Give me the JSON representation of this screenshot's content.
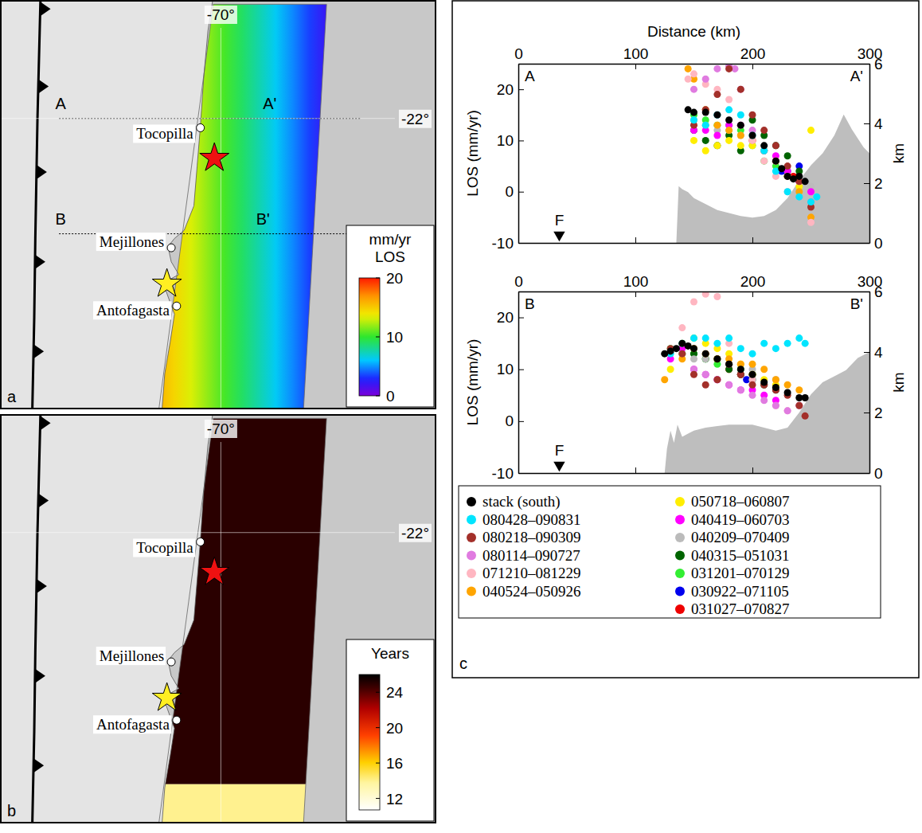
{
  "geography": {
    "lon_range": [
      -72.04,
      -68.01
    ],
    "lat_range": [
      -20.99,
      -24.49
    ],
    "lon_ticks": [
      {
        "value": -70,
        "label": "-70°"
      }
    ],
    "lat_ticks": [
      {
        "value": -22,
        "label": "-22°"
      }
    ],
    "coastline": [
      [
        -70.07,
        -20.95
      ],
      [
        -70.12,
        -21.25
      ],
      [
        -70.16,
        -21.66
      ],
      [
        -70.19,
        -22.07
      ],
      [
        -70.22,
        -22.41
      ],
      [
        -70.25,
        -22.75
      ],
      [
        -70.34,
        -22.96
      ],
      [
        -70.43,
        -23.03
      ],
      [
        -70.49,
        -23.1
      ],
      [
        -70.46,
        -23.23
      ],
      [
        -70.39,
        -23.34
      ],
      [
        -70.47,
        -23.38
      ],
      [
        -70.52,
        -23.45
      ],
      [
        -70.47,
        -23.58
      ],
      [
        -70.43,
        -23.68
      ],
      [
        -70.47,
        -23.92
      ],
      [
        -70.52,
        -24.19
      ],
      [
        -70.55,
        -24.55
      ]
    ],
    "trench": [
      [
        -71.67,
        -20.9
      ],
      [
        -71.7,
        -22.0
      ],
      [
        -71.72,
        -23.03
      ],
      [
        -71.73,
        -23.71
      ],
      [
        -71.75,
        -24.6
      ]
    ],
    "swath": [
      [
        -70.07,
        -21.02
      ],
      [
        -69.02,
        -21.02
      ],
      [
        -69.24,
        -24.6
      ],
      [
        -70.59,
        -24.6
      ]
    ],
    "cities": [
      {
        "name": "Tocopilla",
        "lon": -70.19,
        "lat": -22.08
      },
      {
        "name": "Mejillones",
        "lon": -70.46,
        "lat": -23.11
      },
      {
        "name": "Antofagasta",
        "lon": -70.41,
        "lat": -23.61
      }
    ],
    "stars": [
      {
        "lon": -70.06,
        "lat": -22.34,
        "color": "#ee1111"
      },
      {
        "lon": -70.5,
        "lat": -23.42,
        "color": "#ffee22"
      }
    ]
  },
  "map_a": {
    "label": "a",
    "field": [
      16,
      2
    ],
    "colorbar": {
      "title": [
        "mm/yr",
        "LOS"
      ],
      "range": [
        0,
        20
      ],
      "ticks": [
        0,
        10,
        20
      ]
    },
    "profiles": [
      {
        "start_label": "A",
        "end_label": "A'",
        "lat": -22.0,
        "lon": [
          -71.5,
          -68.71
        ]
      },
      {
        "start_label": "B",
        "end_label": "B'",
        "lat": -22.99,
        "lon": [
          -71.5,
          -68.8
        ]
      }
    ]
  },
  "map_b": {
    "label": "b",
    "field": [
      25,
      14
    ],
    "south_boundary_lat": -24.16,
    "colorbar": {
      "title": [
        "Years"
      ],
      "range": [
        10.7,
        26
      ],
      "ticks": [
        12,
        16,
        20,
        24
      ]
    }
  },
  "chart_data": [
    {
      "type": "scatter",
      "marker": "circle",
      "x_label": "Distance (km)",
      "y_label": "LOS (mm/yr)",
      "y2_label": "km",
      "xlim": [
        0,
        300
      ],
      "xticks": [
        0,
        100,
        200,
        300
      ],
      "ylim": [
        -10,
        25
      ],
      "yticks": [
        -10,
        0,
        10,
        20
      ],
      "y2lim": [
        0,
        6
      ],
      "y2ticks": [
        0,
        2,
        4,
        6
      ],
      "corner_labels": [
        "A",
        "A'"
      ],
      "markers": [
        {
          "text": "F",
          "x": 35
        }
      ],
      "topography": {
        "type": "area",
        "axis": "y2",
        "color": "#bebebe",
        "x": [
          0,
          135,
          137,
          140,
          145,
          150,
          160,
          170,
          180,
          190,
          200,
          210,
          220,
          230,
          240,
          250,
          260,
          270,
          278,
          285,
          295,
          300
        ],
        "values": [
          0,
          0,
          1.9,
          1.8,
          1.7,
          1.5,
          1.3,
          1.1,
          1.0,
          0.9,
          0.85,
          0.9,
          1.1,
          1.5,
          2.1,
          2.6,
          3.0,
          3.6,
          4.3,
          3.8,
          3.2,
          3.0
        ]
      },
      "series": [
        {
          "x": [
            145,
            150,
            160,
            170,
            180,
            190,
            200,
            210,
            220,
            225,
            230,
            235,
            240,
            245
          ],
          "values": [
            16,
            15.5,
            15.5,
            15,
            14,
            13,
            11,
            9,
            6,
            4.5,
            3,
            2.5,
            3,
            2
          ]
        },
        {
          "x": [
            150,
            160,
            170,
            180,
            190,
            200,
            210,
            220,
            230,
            240,
            250,
            255
          ],
          "values": [
            14,
            13,
            15,
            16,
            15,
            11,
            8,
            4,
            0,
            -1,
            -2,
            -1
          ]
        },
        {
          "x": [
            150,
            160,
            170,
            180,
            190,
            200,
            210,
            220,
            230,
            240,
            250
          ],
          "values": [
            13,
            16,
            19,
            24,
            20,
            15,
            12,
            9,
            5,
            2,
            -3
          ]
        },
        {
          "x": [
            150,
            160,
            170,
            180,
            185,
            190,
            200,
            210,
            220,
            230,
            240,
            250
          ],
          "values": [
            20,
            22,
            24,
            24.5,
            24,
            20,
            12,
            8,
            6,
            3,
            2,
            -2
          ]
        },
        {
          "x": [
            145,
            150,
            160,
            170,
            180,
            190,
            200,
            210,
            220,
            230,
            250
          ],
          "values": [
            22,
            23,
            21,
            20,
            18,
            13,
            10,
            6,
            3,
            0,
            -6
          ]
        },
        {
          "x": [
            145,
            150,
            160,
            170,
            180,
            190,
            200,
            210,
            220,
            230,
            240,
            250
          ],
          "values": [
            24,
            22,
            16,
            13,
            12,
            11,
            10,
            8,
            6,
            3,
            0,
            -5
          ]
        },
        {
          "x": [
            150,
            160,
            170,
            180,
            190,
            200,
            210,
            220,
            230,
            240,
            250
          ],
          "values": [
            10,
            8,
            9,
            10,
            9,
            9,
            8,
            6,
            3,
            1,
            12
          ]
        },
        {
          "x": [
            150,
            160,
            170,
            180,
            190,
            200,
            210,
            220,
            230,
            240,
            250
          ],
          "values": [
            12,
            12,
            11,
            13,
            13,
            10,
            8,
            7,
            4,
            2,
            0
          ]
        },
        {
          "x": [
            150,
            160,
            170,
            180,
            190,
            200,
            210,
            220,
            230,
            240,
            250
          ],
          "values": [
            14,
            13,
            12,
            12,
            11,
            10,
            8,
            6,
            4,
            2,
            1
          ]
        },
        {
          "x": [
            150,
            160,
            170,
            180,
            190,
            200,
            210,
            220,
            230,
            240
          ],
          "values": [
            12,
            10,
            9,
            11,
            8,
            14,
            11,
            9,
            7,
            4
          ]
        },
        {
          "x": [
            150,
            160,
            170,
            180,
            190,
            200,
            210,
            220,
            230
          ],
          "values": [
            15,
            14,
            13,
            13,
            12,
            9,
            6,
            5,
            3
          ]
        },
        {
          "x": [
            225,
            230,
            240
          ],
          "values": [
            4,
            4,
            5
          ]
        },
        {
          "x": [
            235,
            240
          ],
          "values": [
            3,
            2
          ]
        }
      ]
    },
    {
      "type": "scatter",
      "marker": "circle",
      "y_label": "LOS (mm/yr)",
      "y2_label": "km",
      "xlim": [
        0,
        300
      ],
      "xticks": [
        0,
        100,
        200,
        300
      ],
      "ylim": [
        -10,
        25
      ],
      "yticks": [
        -10,
        0,
        10,
        20
      ],
      "y2lim": [
        0,
        6
      ],
      "y2ticks": [
        0,
        2,
        4,
        6
      ],
      "corner_labels": [
        "B",
        "B'"
      ],
      "markers": [
        {
          "text": "F",
          "x": 35
        }
      ],
      "topography": {
        "type": "area",
        "axis": "y2",
        "color": "#bebebe",
        "x": [
          0,
          125,
          127,
          130,
          133,
          136,
          140,
          145,
          150,
          160,
          170,
          180,
          190,
          200,
          210,
          220,
          230,
          240,
          250,
          260,
          270,
          280,
          290,
          300
        ],
        "values": [
          0,
          0,
          0.8,
          1.4,
          1.0,
          1.6,
          1.2,
          1.3,
          1.4,
          1.5,
          1.55,
          1.6,
          1.6,
          1.6,
          1.5,
          1.4,
          1.5,
          2.0,
          2.6,
          3.0,
          3.2,
          3.4,
          3.8,
          4.0
        ]
      },
      "series": [
        {
          "x": [
            125,
            130,
            135,
            140,
            145,
            150,
            160,
            170,
            180,
            190,
            200,
            210,
            220,
            230,
            240,
            245
          ],
          "values": [
            13,
            13.5,
            14,
            15,
            14.5,
            14,
            13,
            12,
            11,
            10,
            9,
            7.5,
            6.5,
            5.5,
            4.5,
            4.5
          ]
        },
        {
          "x": [
            130,
            140,
            150,
            160,
            170,
            180,
            190,
            200,
            210,
            220,
            230,
            240,
            245
          ],
          "values": [
            13,
            15,
            16,
            16,
            15,
            16,
            14,
            13,
            15,
            14,
            15,
            16,
            15
          ]
        },
        {
          "x": [
            130,
            140,
            150,
            160,
            170,
            180,
            190,
            200,
            210,
            220,
            230,
            240,
            245
          ],
          "values": [
            14,
            13,
            9,
            7,
            8,
            11,
            9,
            7,
            7,
            6,
            5,
            3,
            1
          ]
        },
        {
          "x": [
            150,
            160,
            170,
            180,
            190,
            200,
            210,
            220,
            230,
            240
          ],
          "values": [
            10,
            9,
            8,
            7,
            6,
            5,
            4,
            3,
            2,
            3
          ]
        },
        {
          "x": [
            140,
            150,
            160,
            170,
            180,
            200,
            220,
            230
          ],
          "values": [
            18,
            23,
            24.5,
            24,
            15,
            8,
            3,
            2
          ]
        },
        {
          "x": [
            125,
            140,
            150,
            160,
            170,
            180,
            190,
            200,
            210,
            220,
            230,
            240
          ],
          "values": [
            8,
            12,
            14,
            13,
            12,
            12,
            11,
            11,
            10,
            8,
            7,
            6
          ]
        },
        {
          "x": [
            130,
            140,
            150,
            160,
            170,
            180,
            190,
            200,
            210,
            220
          ],
          "values": [
            10,
            15,
            16,
            15,
            14,
            13,
            11,
            9,
            8,
            7
          ]
        },
        {
          "x": [
            130,
            140,
            150,
            160,
            170,
            180,
            190,
            200,
            210,
            220
          ],
          "values": [
            12,
            14,
            10,
            9,
            8,
            7,
            6,
            6,
            5,
            4
          ]
        },
        {
          "x": [
            140,
            150,
            160,
            180,
            200,
            220
          ],
          "values": [
            13,
            12,
            12,
            11,
            10,
            8
          ]
        },
        {
          "x": [
            150,
            160,
            170,
            180,
            190,
            200,
            210,
            220
          ],
          "values": [
            13,
            12,
            12,
            10,
            9,
            9,
            7,
            6
          ]
        },
        {
          "x": [
            130,
            140,
            150,
            160,
            170,
            180,
            190,
            200
          ],
          "values": [
            14,
            13,
            13,
            12,
            11,
            11,
            10,
            8
          ]
        },
        {
          "x": [
            195,
            200
          ],
          "values": [
            8,
            8
          ]
        },
        {
          "x": [
            180,
            190
          ],
          "values": [
            10,
            9
          ]
        }
      ]
    }
  ],
  "legend": {
    "entries": [
      {
        "name": "stack (south)",
        "color": "#000000"
      },
      {
        "name": "080428–090831",
        "color": "#00e5ff"
      },
      {
        "name": "080218–090309",
        "color": "#a3302a"
      },
      {
        "name": "080114–090727",
        "color": "#e07be0"
      },
      {
        "name": "071210–081229",
        "color": "#ffb6c1"
      },
      {
        "name": "040524–050926",
        "color": "#ffa500"
      },
      {
        "name": "050718–060807",
        "color": "#ffee00"
      },
      {
        "name": "040419–060703",
        "color": "#ff00ff"
      },
      {
        "name": "040209–070409",
        "color": "#bbbbbb"
      },
      {
        "name": "040315–051031",
        "color": "#006400"
      },
      {
        "name": "031201–070129",
        "color": "#33ee33"
      },
      {
        "name": "030922–071105",
        "color": "#0000ee"
      },
      {
        "name": "031027–070827",
        "color": "#ee0000"
      }
    ]
  },
  "panel_c": {
    "label": "c"
  }
}
